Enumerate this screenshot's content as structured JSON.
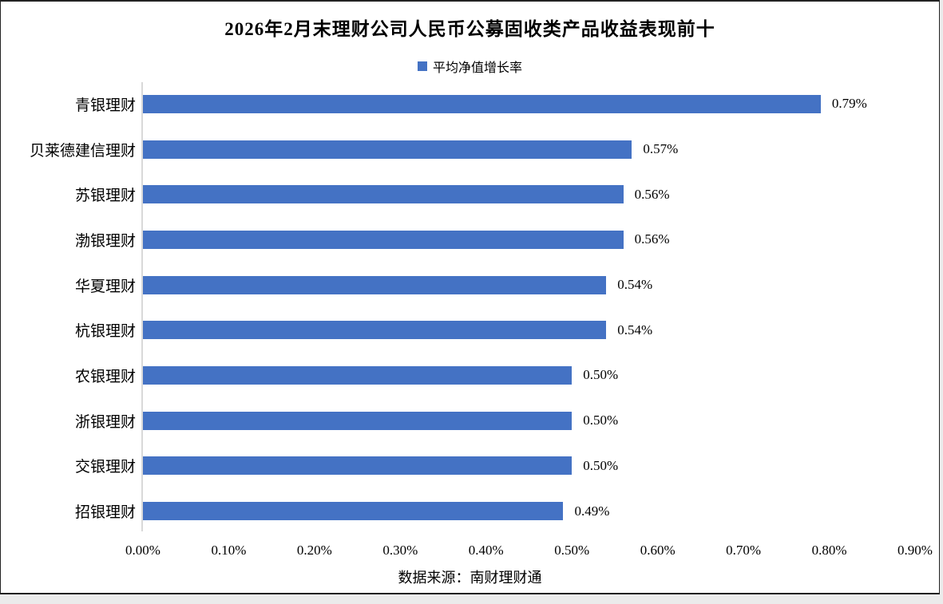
{
  "header": {
    "title": "2026年2月末理财公司人民币公募固收类产品收益表现前十"
  },
  "legend": {
    "label": "平均净值增长率",
    "swatch_color": "#4472C4"
  },
  "footer": {
    "source_note": "数据来源：南财理财通"
  },
  "chart_data": {
    "type": "bar",
    "orientation": "horizontal",
    "title": "2026年2月末理财公司人民币公募固收类产品收益表现前十",
    "legend_entries": [
      "平均净值增长率"
    ],
    "legend_position": "top",
    "categories": [
      "青银理财",
      "贝莱德建信理财",
      "苏银理财",
      "渤银理财",
      "华夏理财",
      "杭银理财",
      "农银理财",
      "浙银理财",
      "交银理财",
      "招银理财"
    ],
    "series": [
      {
        "name": "平均净值增长率",
        "values": [
          0.79,
          0.57,
          0.56,
          0.56,
          0.54,
          0.54,
          0.5,
          0.5,
          0.5,
          0.49
        ]
      }
    ],
    "value_labels": [
      "0.79%",
      "0.57%",
      "0.56%",
      "0.56%",
      "0.54%",
      "0.54%",
      "0.50%",
      "0.50%",
      "0.50%",
      "0.49%"
    ],
    "x_ticks": [
      "0.00%",
      "0.10%",
      "0.20%",
      "0.30%",
      "0.40%",
      "0.50%",
      "0.60%",
      "0.70%",
      "0.80%",
      "0.90%"
    ],
    "xlim": [
      0,
      0.9
    ],
    "xlabel": "",
    "ylabel": "",
    "grid": false,
    "bar_color": "#4472C4",
    "source_note": "数据来源：南财理财通"
  }
}
